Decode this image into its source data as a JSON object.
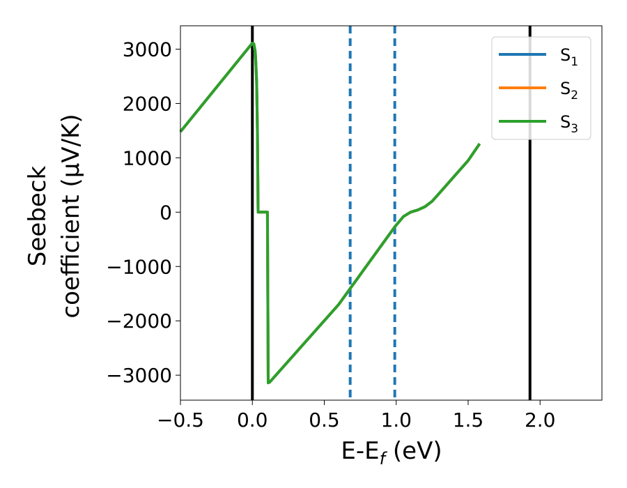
{
  "chart_data": {
    "type": "line",
    "xlabel": "E-E",
    "xlabel_sub": "f",
    "xlabel_unit": " (eV)",
    "ylabel_line1": "Seebeck",
    "ylabel_line2": "coefficient  (μV/K)",
    "xlim": [
      -0.5,
      2.43
    ],
    "ylim": [
      -3460,
      3430
    ],
    "xticks": [
      -0.5,
      0.0,
      0.5,
      1.0,
      1.5,
      2.0
    ],
    "xtick_labels": [
      "−0.5",
      "0.0",
      "0.5",
      "1.0",
      "1.5",
      "2.0"
    ],
    "yticks": [
      3000,
      2000,
      1000,
      0,
      -1000,
      -2000,
      -3000
    ],
    "ytick_labels": [
      "3000",
      "2000",
      "1000",
      "0",
      "−1000",
      "−2000",
      "−3000"
    ],
    "vlines_solid": [
      0.0,
      1.93
    ],
    "vlines_dashed": [
      0.68,
      0.99
    ],
    "legend_position": "top-right",
    "series": [
      {
        "name": "S",
        "sub": "1",
        "color": "#1f77b4"
      },
      {
        "name": "S",
        "sub": "2",
        "color": "#ff7f0e"
      },
      {
        "name": "S",
        "sub": "3",
        "color": "#2ca02c"
      }
    ],
    "curve": {
      "x": [
        -0.5,
        0.0,
        0.01,
        0.02,
        0.025,
        0.03,
        0.035,
        0.04,
        0.05,
        0.08,
        0.105,
        0.11,
        0.12,
        0.6,
        0.99,
        1.05,
        1.1,
        1.15,
        1.2,
        1.25,
        1.3,
        1.4,
        1.5,
        1.58
      ],
      "y": [
        1480,
        3110,
        3100,
        2950,
        2700,
        2400,
        1500,
        0,
        0,
        0,
        0,
        -3140,
        -3130,
        -1700,
        -270,
        -80,
        0,
        40,
        100,
        200,
        350,
        650,
        950,
        1260
      ]
    }
  }
}
